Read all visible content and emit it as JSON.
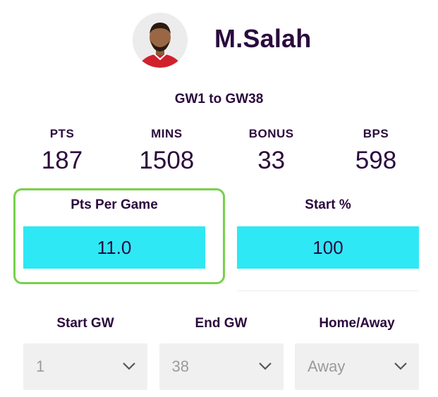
{
  "player": {
    "name": "M.Salah"
  },
  "period": {
    "label": "GW1 to GW38"
  },
  "stats": [
    {
      "label": "PTS",
      "value": "187"
    },
    {
      "label": "MINS",
      "value": "1508"
    },
    {
      "label": "BONUS",
      "value": "33"
    },
    {
      "label": "BPS",
      "value": "598"
    }
  ],
  "metrics": [
    {
      "label": "Pts Per Game",
      "value": "11.0"
    },
    {
      "label": "Start %",
      "value": "100"
    }
  ],
  "filters": [
    {
      "label": "Start GW",
      "value": "1"
    },
    {
      "label": "End GW",
      "value": "38"
    },
    {
      "label": "Home/Away",
      "value": "Away"
    }
  ],
  "colors": {
    "primary_text": "#2b0a3d",
    "metric_bar": "#2ee8f5",
    "highlight_ring": "#77d14a",
    "select_bg": "#f0f0f0"
  },
  "icons": {
    "avatar": "player-photo",
    "dropdown": "chevron-down-icon"
  }
}
